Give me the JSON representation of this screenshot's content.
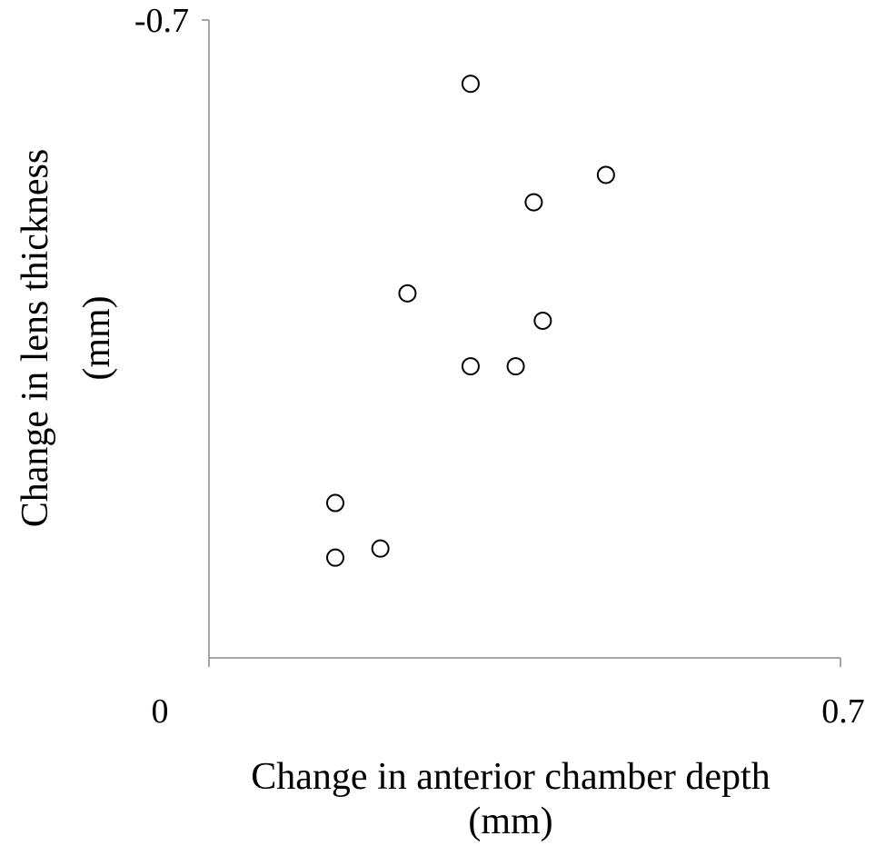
{
  "chart_data": {
    "type": "scatter",
    "title": "",
    "xlabel_lines": [
      "Change in anterior chamber depth",
      "(mm)"
    ],
    "ylabel_lines": [
      "Change in lens thickness",
      "(mm)"
    ],
    "xlim": [
      0,
      0.7
    ],
    "ylim": [
      0,
      -0.7
    ],
    "x_tick_labels": [
      "0",
      "0.7"
    ],
    "y_tick_labels": [
      "-0.7"
    ],
    "grid": false,
    "legend": "none",
    "marker": "open-circle",
    "colors": {
      "axis": "#888888",
      "marker_stroke": "#000000",
      "marker_fill": "#ffffff",
      "text": "#000000"
    },
    "points": [
      {
        "x": 0.29,
        "y": -0.63
      },
      {
        "x": 0.44,
        "y": -0.53
      },
      {
        "x": 0.36,
        "y": -0.5
      },
      {
        "x": 0.22,
        "y": -0.4
      },
      {
        "x": 0.37,
        "y": -0.37
      },
      {
        "x": 0.29,
        "y": -0.32
      },
      {
        "x": 0.34,
        "y": -0.32
      },
      {
        "x": 0.14,
        "y": -0.17
      },
      {
        "x": 0.19,
        "y": -0.12
      },
      {
        "x": 0.14,
        "y": -0.11
      }
    ]
  }
}
